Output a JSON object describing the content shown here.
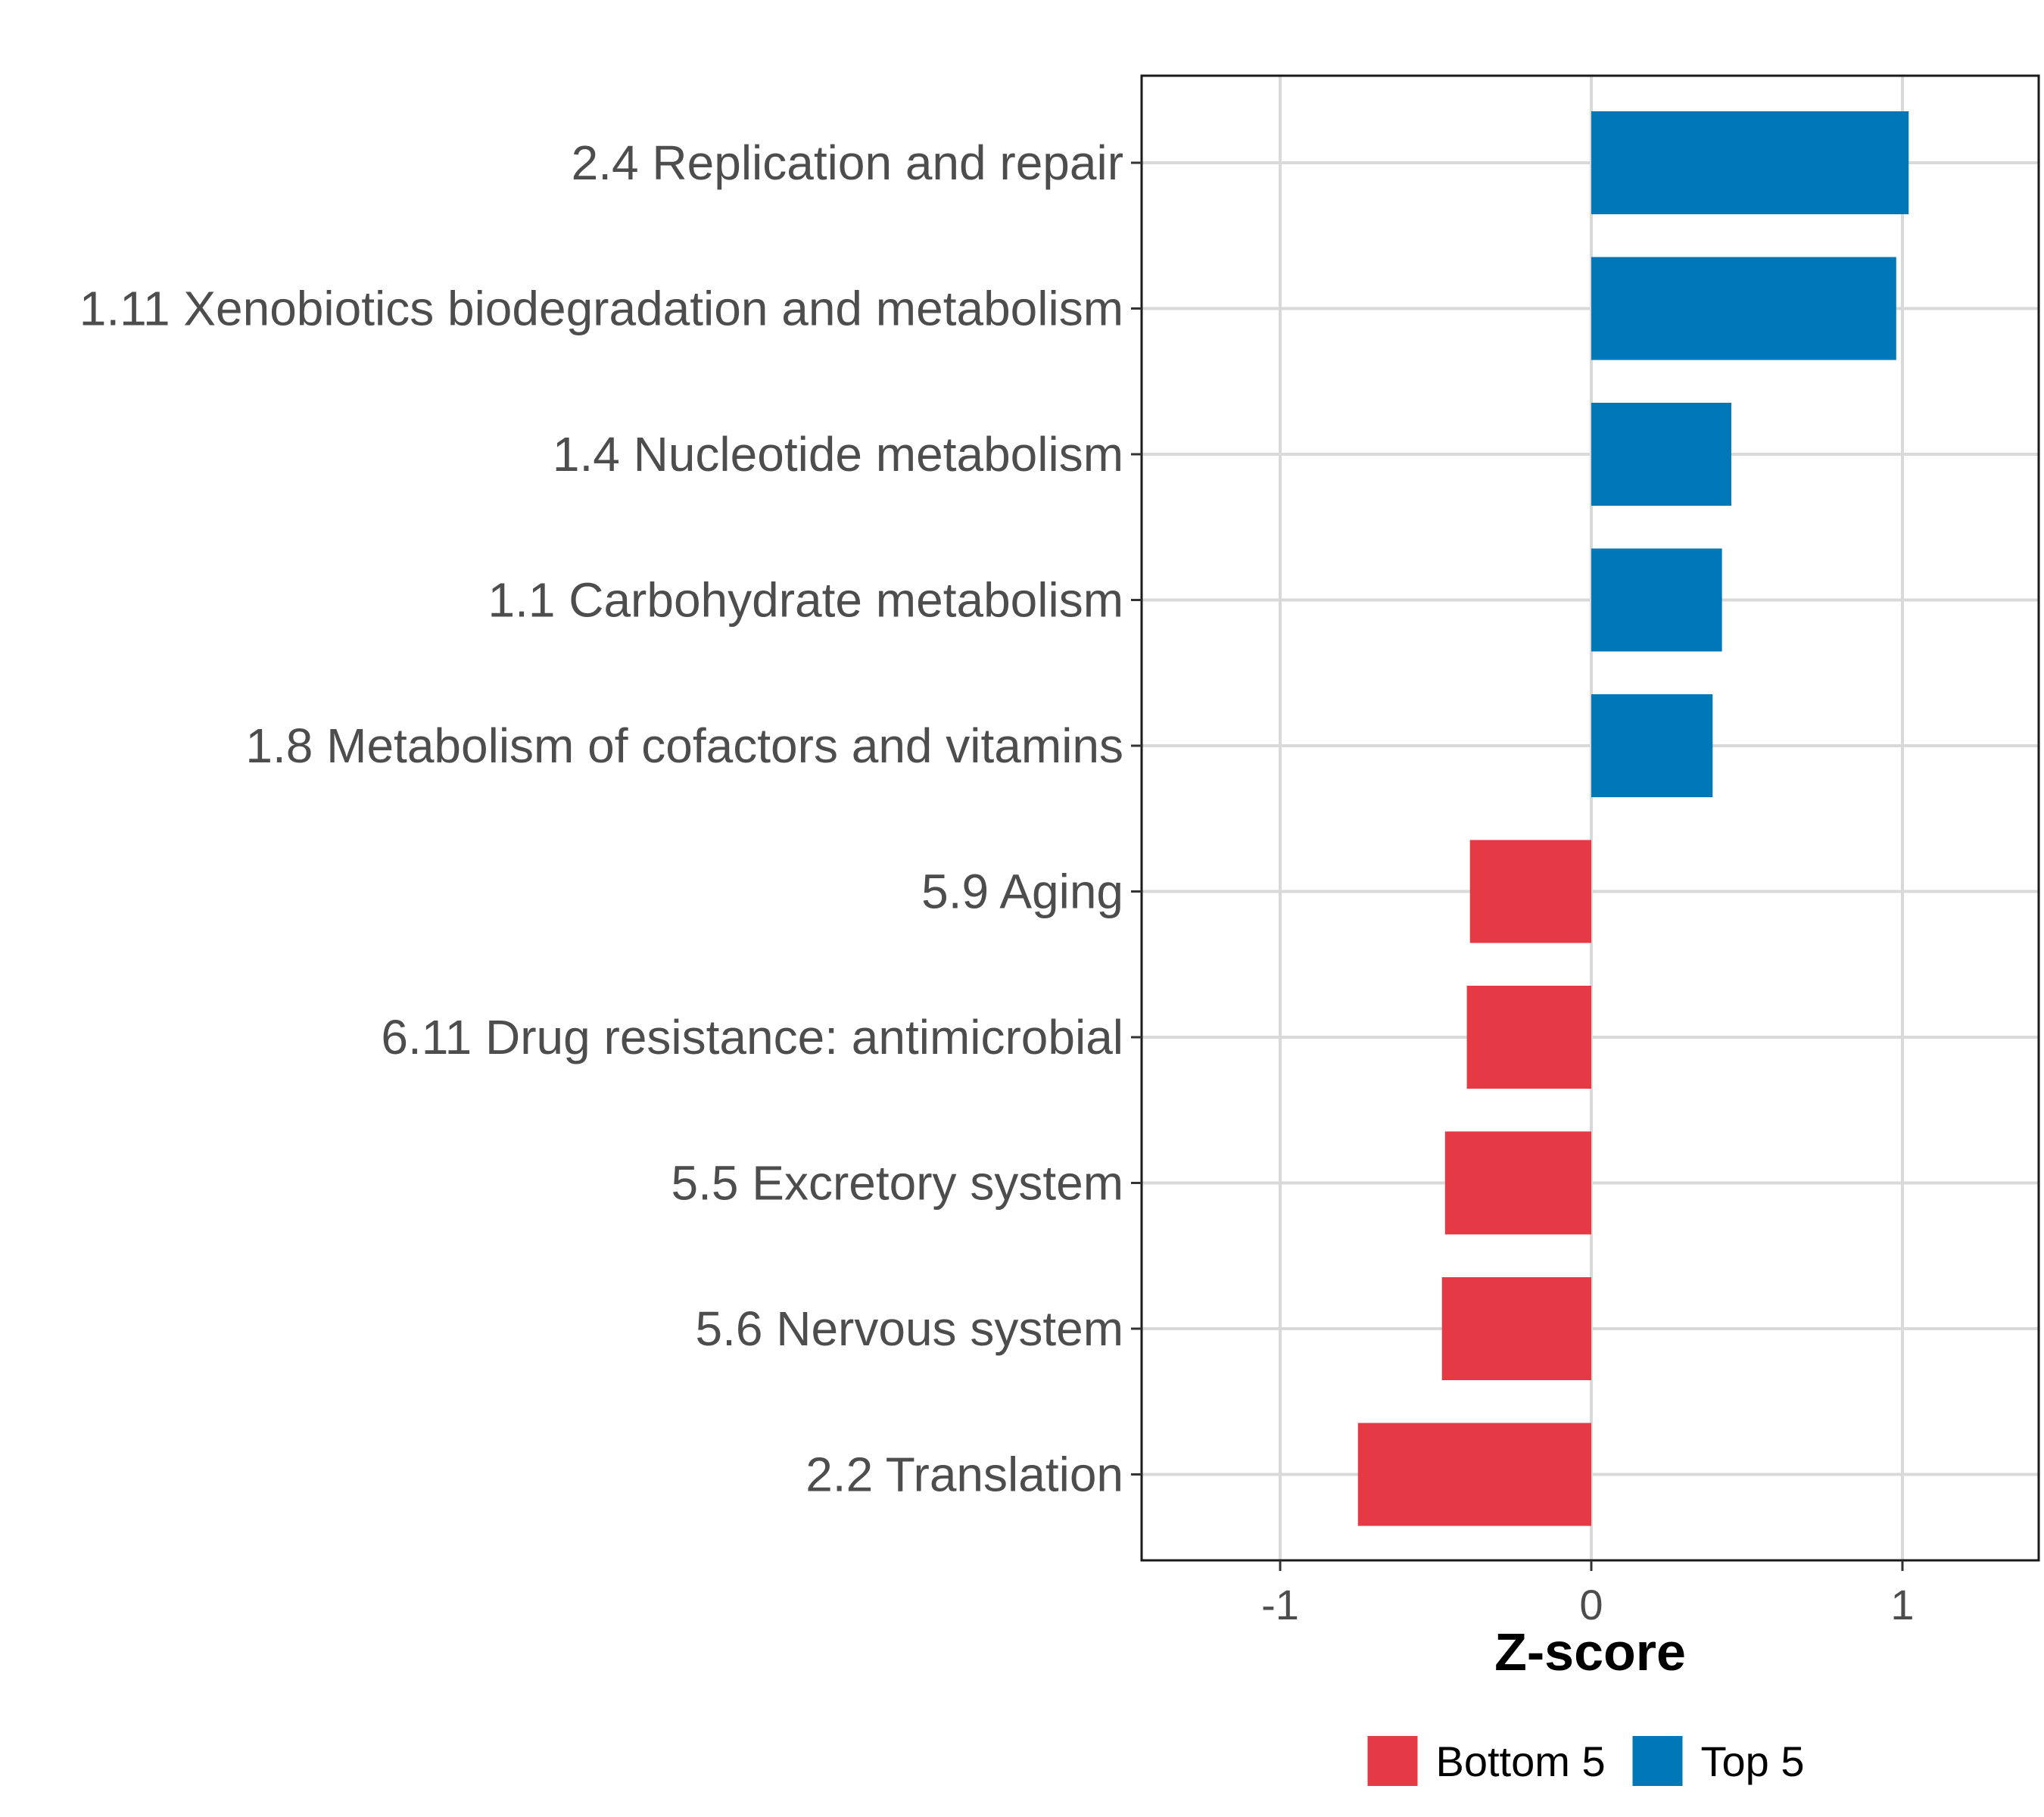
{
  "chart_data": {
    "type": "bar",
    "orientation": "horizontal",
    "title": "",
    "xlabel": "Z-score",
    "ylabel": "",
    "xlim": [
      -1.45,
      1.45
    ],
    "xticks": [
      -1,
      0,
      1
    ],
    "xtick_labels": [
      "-1",
      "0",
      "1"
    ],
    "grid": true,
    "legend_position": "bottom",
    "categories": [
      "2.4 Replication and repair",
      "1.11 Xenobiotics biodegradation and metabolism",
      "1.4 Nucleotide metabolism",
      "1.1 Carbohydrate metabolism",
      "1.8 Metabolism of cofactors and vitamins",
      "5.9 Aging",
      "6.11 Drug resistance: antimicrobial",
      "5.5 Excretory system",
      "5.6 Nervous system",
      "2.2 Translation"
    ],
    "values": [
      1.02,
      0.98,
      0.45,
      0.42,
      0.39,
      -0.39,
      -0.4,
      -0.47,
      -0.48,
      -0.75
    ],
    "groups": [
      "Top 5",
      "Top 5",
      "Top 5",
      "Top 5",
      "Top 5",
      "Bottom 5",
      "Bottom 5",
      "Bottom 5",
      "Bottom 5",
      "Bottom 5"
    ],
    "legend": [
      {
        "name": "Bottom 5",
        "color": "#e63946"
      },
      {
        "name": "Top 5",
        "color": "#0077b6"
      }
    ]
  }
}
